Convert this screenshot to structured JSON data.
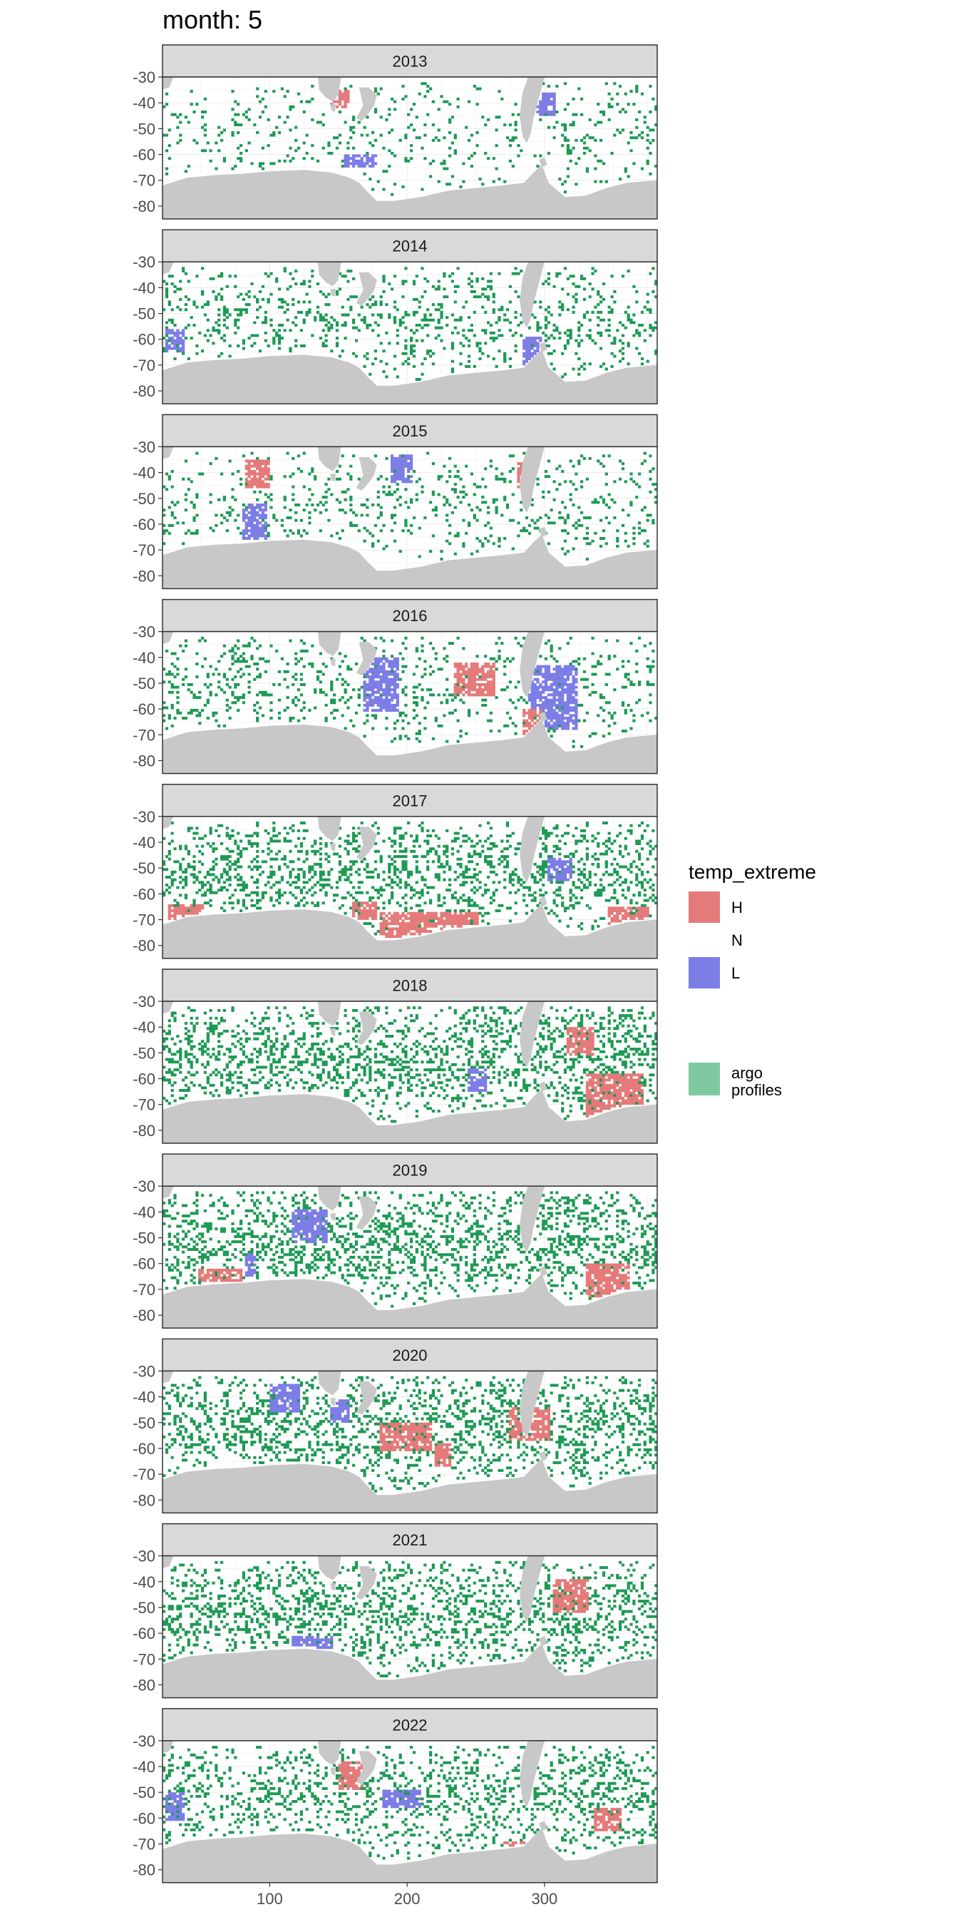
{
  "chart_data": {
    "type": "heatmap",
    "title": "month: 5",
    "xlabel": "",
    "ylabel": "",
    "xlim": [
      22,
      382
    ],
    "ylim": [
      -85,
      -30
    ],
    "x_ticks": [
      100,
      200,
      300
    ],
    "x_tick_labels": [
      "100",
      "200",
      "300"
    ],
    "y_ticks": [
      -30,
      -40,
      -50,
      -60,
      -70,
      -80
    ],
    "y_tick_labels": [
      "-30",
      "-40",
      "-50",
      "-60",
      "-70",
      "-80"
    ],
    "grid": true,
    "legend": {
      "title": "temp_extreme",
      "position": "right",
      "entries": [
        {
          "label": "H",
          "color": "#E57A7A"
        },
        {
          "label": "N",
          "color": ""
        },
        {
          "label": "L",
          "color": "#7D7DE6"
        }
      ],
      "argo_entry": {
        "label_lines": [
          "argo",
          "profiles"
        ],
        "color": "#7FC9A0"
      }
    },
    "colors": {
      "H": "#E57A7A",
      "L": "#7D7DE6",
      "argo": "#1E9A55",
      "land": "#C8C8C8",
      "strip": "#D9D9D9"
    },
    "facets": [
      {
        "year": "2013",
        "seed": 13,
        "argo": 0.1,
        "H": [
          [
            150,
            -38,
            7,
            3
          ]
        ],
        "L": [
          [
            300,
            -40,
            6,
            4
          ],
          [
            165,
            -62,
            12,
            2
          ]
        ]
      },
      {
        "year": "2014",
        "seed": 14,
        "argo": 0.18,
        "H": [],
        "L": [
          [
            290,
            -65,
            6,
            6
          ],
          [
            30,
            -60,
            6,
            4
          ]
        ]
      },
      {
        "year": "2015",
        "seed": 15,
        "argo": 0.12,
        "H": [
          [
            90,
            -40,
            8,
            5
          ],
          [
            285,
            -40,
            5,
            5
          ]
        ],
        "L": [
          [
            195,
            -38,
            8,
            5
          ],
          [
            88,
            -60,
            8,
            8
          ]
        ]
      },
      {
        "year": "2016",
        "seed": 16,
        "argo": 0.16,
        "H": [
          [
            248,
            -48,
            14,
            6
          ],
          [
            290,
            -68,
            6,
            8
          ]
        ],
        "L": [
          [
            180,
            -50,
            12,
            10
          ],
          [
            305,
            -55,
            18,
            12
          ]
        ]
      },
      {
        "year": "2017",
        "seed": 17,
        "argo": 0.3,
        "H": [
          [
            215,
            -72,
            35,
            5
          ],
          [
            38,
            -67,
            12,
            3
          ],
          [
            168,
            -66,
            8,
            3
          ],
          [
            360,
            -68,
            14,
            3
          ]
        ],
        "L": [
          [
            310,
            -50,
            8,
            4
          ]
        ]
      },
      {
        "year": "2018",
        "seed": 18,
        "argo": 0.32,
        "H": [
          [
            350,
            -66,
            20,
            8
          ],
          [
            325,
            -45,
            10,
            5
          ]
        ],
        "L": [
          [
            250,
            -60,
            6,
            4
          ]
        ]
      },
      {
        "year": "2019",
        "seed": 19,
        "argo": 0.34,
        "H": [
          [
            345,
            -66,
            15,
            6
          ],
          [
            63,
            -64,
            16,
            2
          ]
        ],
        "L": [
          [
            128,
            -45,
            12,
            6
          ],
          [
            85,
            -60,
            4,
            4
          ]
        ]
      },
      {
        "year": "2020",
        "seed": 20,
        "argo": 0.3,
        "H": [
          [
            198,
            -55,
            18,
            5
          ],
          [
            288,
            -50,
            14,
            6
          ],
          [
            225,
            -62,
            5,
            4
          ]
        ],
        "L": [
          [
            110,
            -40,
            10,
            5
          ],
          [
            150,
            -45,
            7,
            4
          ]
        ]
      },
      {
        "year": "2021",
        "seed": 21,
        "argo": 0.3,
        "H": [
          [
            318,
            -45,
            12,
            6
          ]
        ],
        "L": [
          [
            130,
            -63,
            14,
            2
          ]
        ]
      },
      {
        "year": "2022",
        "seed": 22,
        "argo": 0.26,
        "H": [
          [
            158,
            -43,
            8,
            5
          ],
          [
            285,
            -72,
            15,
            3
          ],
          [
            345,
            -60,
            10,
            4
          ]
        ],
        "L": [
          [
            195,
            -52,
            14,
            3
          ],
          [
            30,
            -55,
            6,
            5
          ]
        ]
      }
    ]
  }
}
